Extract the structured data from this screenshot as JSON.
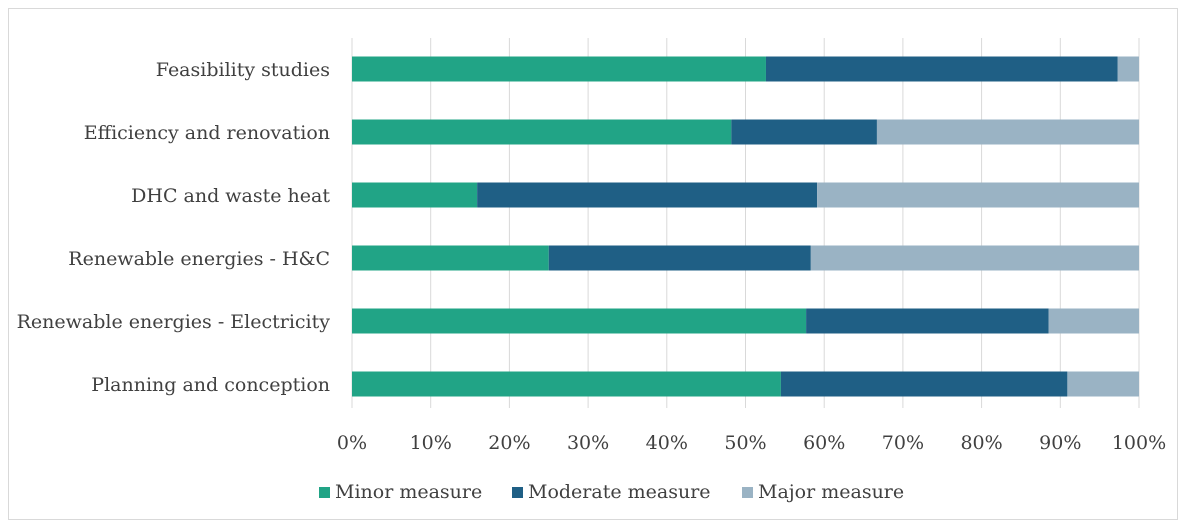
{
  "chart_data": {
    "type": "bar",
    "orientation": "horizontal",
    "stacked": true,
    "title": "",
    "xlabel": "",
    "ylabel": "",
    "xlim": [
      0,
      100
    ],
    "x_ticks": [
      "0%",
      "10%",
      "20%",
      "30%",
      "40%",
      "50%",
      "60%",
      "70%",
      "80%",
      "90%",
      "100%"
    ],
    "categories": [
      "Feasibility studies",
      "Efficiency and renovation",
      "DHC and waste heat",
      "Renewable energies - H&C",
      "Renewable energies - Electricity",
      "Planning and conception"
    ],
    "series": [
      {
        "name": "Minor measure",
        "color": "#21a486",
        "values": [
          52.6,
          48.2,
          15.9,
          25.0,
          57.7,
          54.5
        ]
      },
      {
        "name": "Moderate measure",
        "color": "#1f5f85",
        "values": [
          44.7,
          18.5,
          43.2,
          33.3,
          30.8,
          36.4
        ]
      },
      {
        "name": "Major measure",
        "color": "#9ab3c4",
        "values": [
          2.7,
          33.3,
          40.9,
          41.7,
          11.5,
          9.1
        ]
      }
    ],
    "grid": true,
    "legend_position": "bottom"
  }
}
